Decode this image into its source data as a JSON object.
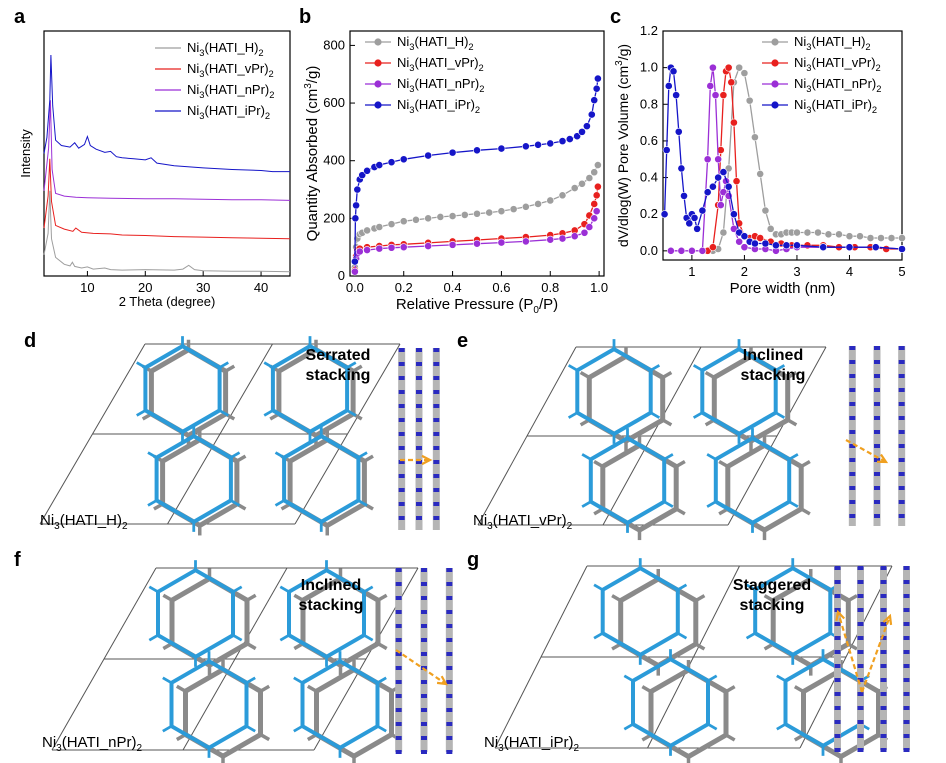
{
  "panels": {
    "a": {
      "letter": "a"
    },
    "b": {
      "letter": "b"
    },
    "c": {
      "letter": "c"
    },
    "d": {
      "letter": "d",
      "stacking": "Serrated\nstacking",
      "compound": "Ni3(HATI_H)2"
    },
    "e": {
      "letter": "e",
      "stacking": "Inclined\nstacking",
      "compound": "Ni3(HATI_vPr)2"
    },
    "f": {
      "letter": "f",
      "stacking": "Inclined\nstacking",
      "compound": "Ni3(HATI_nPr)2"
    },
    "g": {
      "letter": "g",
      "stacking": "Staggered\nstacking",
      "compound": "Ni3(HATI_iPr)2"
    }
  },
  "colors": {
    "H": "#9e9e9e",
    "vPr": "#e8201e",
    "nPr": "#9b2fd6",
    "iPr": "#1515c8",
    "framework": "#2b9bd9",
    "framework_alt": "#8a8a8a",
    "arrow": "#f0a020"
  },
  "chart_data": [
    {
      "type": "line",
      "panel": "a",
      "xlabel": "2 Theta (degree)",
      "ylabel": "Intensity",
      "xlim": [
        2.5,
        45
      ],
      "xticks": [
        10,
        20,
        30,
        40
      ],
      "legend_position": "top-right",
      "series": [
        {
          "name": "Ni3(HATI_H)2",
          "color": "#9e9e9e",
          "x": [
            2.5,
            3.2,
            3.5,
            3.8,
            4.5,
            6,
            7,
            7.4,
            7.8,
            9,
            10,
            11,
            13,
            14,
            16,
            20,
            25,
            26.5,
            27.5,
            28.5,
            30,
            35,
            40,
            45
          ],
          "y": [
            0.4,
            0.8,
            1.6,
            0.7,
            0.35,
            0.22,
            0.19,
            0.26,
            0.18,
            0.15,
            0.17,
            0.13,
            0.15,
            0.12,
            0.11,
            0.12,
            0.11,
            0.13,
            0.2,
            0.12,
            0.1,
            0.09,
            0.09,
            0.08
          ]
        },
        {
          "name": "Ni3(HATI_vPr)2",
          "color": "#e8201e",
          "x": [
            2.5,
            3.2,
            3.5,
            3.8,
            4.5,
            6,
            7.5,
            8,
            9,
            11,
            14,
            16,
            20,
            25,
            30,
            35,
            40,
            45
          ],
          "y": [
            0.9,
            1.5,
            2.2,
            1.4,
            0.95,
            0.88,
            0.84,
            0.9,
            0.82,
            0.8,
            0.79,
            0.77,
            0.76,
            0.74,
            0.73,
            0.72,
            0.71,
            0.7
          ]
        },
        {
          "name": "Ni3(HATI_nPr)2",
          "color": "#9b2fd6",
          "x": [
            2.5,
            3.3,
            3.6,
            3.9,
            4.5,
            6,
            8,
            10,
            14,
            20,
            25,
            30,
            35,
            40,
            45
          ],
          "y": [
            1.6,
            2.4,
            3.3,
            2.0,
            1.55,
            1.5,
            1.48,
            1.47,
            1.46,
            1.45,
            1.45,
            1.44,
            1.43,
            1.43,
            1.42
          ]
        },
        {
          "name": "Ni3(HATI_iPr)2",
          "color": "#1515c8",
          "x": [
            2.5,
            3.0,
            3.5,
            3.7,
            4.0,
            4.5,
            5.5,
            7,
            7.8,
            8.5,
            9.5,
            10.0,
            10.5,
            11.5,
            13,
            14,
            15,
            16,
            18,
            20,
            21,
            22,
            25,
            30,
            35,
            40,
            42,
            45
          ],
          "y": [
            2.3,
            2.6,
            3.3,
            4.15,
            3.2,
            2.55,
            2.45,
            2.42,
            2.5,
            2.4,
            2.47,
            2.62,
            2.45,
            2.38,
            2.32,
            2.34,
            2.24,
            2.22,
            2.2,
            2.18,
            2.22,
            2.12,
            2.07,
            2.03,
            2.0,
            1.98,
            1.96,
            1.96
          ]
        }
      ]
    },
    {
      "type": "line",
      "panel": "b",
      "xlabel": "Relative Pressure (P0/P)",
      "ylabel": "Quantity Absorbed (cm3/g)",
      "xlim": [
        -0.02,
        1.02
      ],
      "ylim": [
        0,
        850
      ],
      "xticks": [
        0.0,
        0.2,
        0.4,
        0.6,
        0.8,
        1.0
      ],
      "yticks": [
        0,
        200,
        400,
        600,
        800
      ],
      "legend_position": "top-left",
      "series": [
        {
          "name": "Ni3(HATI_H)2",
          "color": "#9e9e9e",
          "x": [
            0,
            0.005,
            0.01,
            0.02,
            0.03,
            0.05,
            0.08,
            0.1,
            0.15,
            0.2,
            0.25,
            0.3,
            0.35,
            0.4,
            0.45,
            0.5,
            0.55,
            0.6,
            0.65,
            0.7,
            0.75,
            0.8,
            0.85,
            0.9,
            0.93,
            0.96,
            0.98,
            0.995
          ],
          "y": [
            30,
            100,
            130,
            145,
            150,
            158,
            165,
            170,
            180,
            190,
            195,
            200,
            205,
            208,
            212,
            216,
            220,
            225,
            232,
            240,
            250,
            262,
            280,
            305,
            320,
            340,
            360,
            385
          ]
        },
        {
          "name": "Ni3(HATI_vPr)2",
          "color": "#e8201e",
          "x": [
            0,
            0.005,
            0.01,
            0.02,
            0.05,
            0.1,
            0.15,
            0.2,
            0.3,
            0.4,
            0.5,
            0.6,
            0.7,
            0.8,
            0.85,
            0.9,
            0.94,
            0.96,
            0.98,
            0.99,
            0.995
          ],
          "y": [
            20,
            70,
            90,
            95,
            100,
            104,
            108,
            110,
            115,
            120,
            125,
            130,
            135,
            142,
            148,
            158,
            180,
            210,
            250,
            280,
            310
          ]
        },
        {
          "name": "Ni3(HATI_nPr)2",
          "color": "#9b2fd6",
          "x": [
            0,
            0.005,
            0.01,
            0.02,
            0.05,
            0.1,
            0.15,
            0.2,
            0.3,
            0.4,
            0.5,
            0.6,
            0.7,
            0.8,
            0.85,
            0.9,
            0.94,
            0.96,
            0.98,
            0.99
          ],
          "y": [
            15,
            60,
            78,
            85,
            90,
            95,
            98,
            100,
            104,
            108,
            112,
            116,
            120,
            126,
            130,
            138,
            150,
            170,
            200,
            225
          ]
        },
        {
          "name": "Ni3(HATI_iPr)2",
          "color": "#1515c8",
          "x": [
            0,
            0.002,
            0.005,
            0.01,
            0.02,
            0.03,
            0.05,
            0.08,
            0.1,
            0.15,
            0.2,
            0.3,
            0.4,
            0.5,
            0.6,
            0.7,
            0.75,
            0.8,
            0.85,
            0.88,
            0.91,
            0.93,
            0.95,
            0.97,
            0.98,
            0.99,
            0.995
          ],
          "y": [
            50,
            200,
            245,
            300,
            335,
            350,
            365,
            378,
            385,
            395,
            405,
            418,
            428,
            436,
            442,
            450,
            455,
            460,
            468,
            475,
            485,
            500,
            520,
            560,
            610,
            650,
            685
          ]
        }
      ]
    },
    {
      "type": "line",
      "panel": "c",
      "xlabel": "Pore width (nm)",
      "ylabel": "dV/dlog(W) Pore Volume (cm3/g)",
      "xlim": [
        0.45,
        5
      ],
      "ylim": [
        -0.05,
        1.2
      ],
      "xticks": [
        1,
        2,
        3,
        4,
        5
      ],
      "yticks": [
        0.0,
        0.2,
        0.4,
        0.6,
        0.8,
        1.0,
        1.2
      ],
      "legend_position": "top-right",
      "series": [
        {
          "name": "Ni3(HATI_H)2",
          "color": "#9e9e9e",
          "x": [
            1.4,
            1.5,
            1.6,
            1.7,
            1.8,
            1.9,
            2.0,
            2.1,
            2.2,
            2.3,
            2.4,
            2.5,
            2.6,
            2.7,
            2.8,
            2.9,
            3.0,
            3.2,
            3.4,
            3.6,
            3.8,
            4.0,
            4.2,
            4.4,
            4.6,
            4.8,
            5.0
          ],
          "y": [
            0,
            0.01,
            0.1,
            0.45,
            0.92,
            1.0,
            0.97,
            0.82,
            0.62,
            0.42,
            0.22,
            0.12,
            0.09,
            0.09,
            0.1,
            0.1,
            0.1,
            0.1,
            0.1,
            0.09,
            0.09,
            0.08,
            0.08,
            0.07,
            0.07,
            0.07,
            0.07
          ]
        },
        {
          "name": "Ni3(HATI_vPr)2",
          "color": "#e8201e",
          "x": [
            1.3,
            1.4,
            1.5,
            1.55,
            1.6,
            1.65,
            1.7,
            1.75,
            1.8,
            1.85,
            1.9,
            2.0,
            2.1,
            2.2,
            2.3,
            2.5,
            2.7,
            2.9,
            3.2,
            3.5,
            3.8,
            4.1,
            4.4,
            4.7,
            5.0
          ],
          "y": [
            0,
            0.02,
            0.25,
            0.55,
            0.85,
            0.98,
            1.0,
            0.92,
            0.7,
            0.38,
            0.15,
            0.08,
            0.07,
            0.08,
            0.07,
            0.05,
            0.04,
            0.03,
            0.03,
            0.03,
            0.02,
            0.02,
            0.02,
            0.01,
            0.01
          ]
        },
        {
          "name": "Ni3(HATI_nPr)2",
          "color": "#9b2fd6",
          "x": [
            0.6,
            0.8,
            1.0,
            1.2,
            1.3,
            1.35,
            1.4,
            1.45,
            1.5,
            1.55,
            1.6,
            1.65,
            1.7,
            1.8,
            1.9,
            2.0,
            2.2,
            2.4,
            2.6,
            2.8,
            3.0,
            3.5,
            4.0,
            4.5,
            5.0
          ],
          "y": [
            0,
            0,
            0,
            0,
            0.5,
            0.9,
            1.0,
            0.85,
            0.5,
            0.25,
            0.32,
            0.38,
            0.3,
            0.12,
            0.05,
            0.02,
            0.01,
            0.01,
            0,
            0.01,
            0.02,
            0.02,
            0.02,
            0.02,
            0.01
          ]
        },
        {
          "name": "Ni3(HATI_iPr)2",
          "color": "#1515c8",
          "x": [
            0.48,
            0.52,
            0.56,
            0.6,
            0.65,
            0.7,
            0.75,
            0.8,
            0.85,
            0.9,
            0.95,
            1.0,
            1.05,
            1.1,
            1.2,
            1.3,
            1.4,
            1.5,
            1.6,
            1.7,
            1.8,
            1.9,
            2.0,
            2.1,
            2.2,
            2.4,
            2.6,
            2.8,
            3.0,
            3.5,
            4.0,
            4.5,
            5.0
          ],
          "y": [
            0.2,
            0.55,
            0.9,
            1.0,
            0.98,
            0.85,
            0.65,
            0.45,
            0.3,
            0.18,
            0.15,
            0.2,
            0.18,
            0.12,
            0.22,
            0.32,
            0.35,
            0.4,
            0.43,
            0.35,
            0.2,
            0.1,
            0.08,
            0.05,
            0.04,
            0.04,
            0.03,
            0.03,
            0.03,
            0.02,
            0.02,
            0.02,
            0.01
          ]
        }
      ]
    }
  ]
}
